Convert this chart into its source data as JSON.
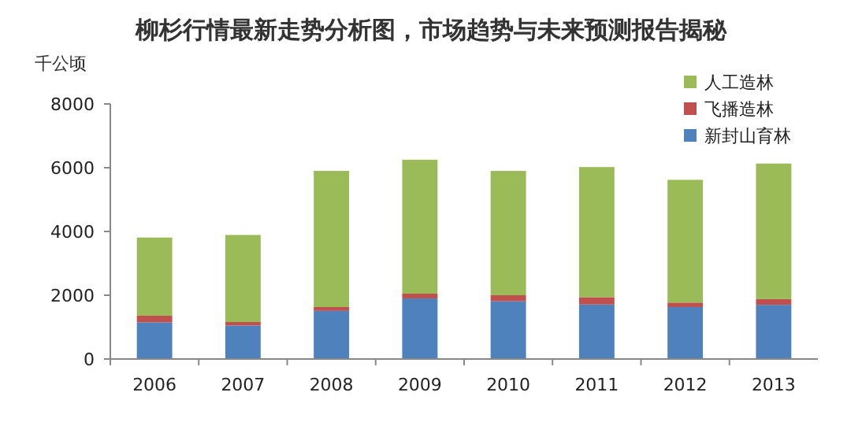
{
  "chart_data": {
    "type": "bar",
    "title": "柳杉行情最新走势分析图，市场趋势与未来预测报告揭秘",
    "ylabel": "千公顷",
    "stacked": true,
    "categories": [
      "2006",
      "2007",
      "2008",
      "2009",
      "2010",
      "2011",
      "2012",
      "2013"
    ],
    "series": [
      {
        "name": "新封山育林",
        "color": "#4f81bd",
        "values": [
          1150,
          1050,
          1510,
          1900,
          1810,
          1710,
          1630,
          1700
        ]
      },
      {
        "name": "飞播造林",
        "color": "#c0504d",
        "values": [
          210,
          110,
          120,
          150,
          190,
          230,
          140,
          180
        ]
      },
      {
        "name": "人工造林",
        "color": "#9bbb59",
        "values": [
          2450,
          2730,
          4270,
          4200,
          3900,
          4080,
          3850,
          4250
        ]
      }
    ],
    "ylim": [
      0,
      8000
    ],
    "yticks": [
      0,
      2000,
      4000,
      6000,
      8000
    ],
    "grid": false,
    "legend": "top right"
  }
}
